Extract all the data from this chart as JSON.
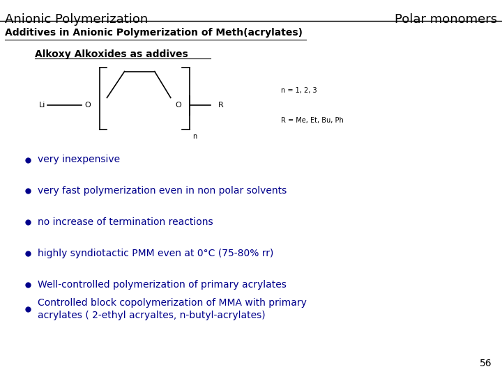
{
  "title_left": "Anionic Polymerization",
  "title_right": "Polar monomers",
  "subtitle": "Additives in Anionic Polymerization of Meth(acrylates)",
  "section_title": "Alkoxy Alkoxides as addives",
  "bullet_color": "#00008B",
  "bullet_points": [
    "very inexpensive",
    "very fast polymerization even in non polar solvents",
    "no increase of termination reactions",
    "highly syndiotactic PMM even at 0°C (75-80% rr)",
    "Well-controlled polymerization of primary acrylates",
    "Controlled block copolymerization of MMA with primary\nacrylates ( 2-ethyl acryaltes, n-butyl-acrylates)"
  ],
  "page_number": "56",
  "chem_note1": "n = 1, 2, 3",
  "chem_note2": "R = Me, Et, Bu, Ph",
  "bg_color": "#ffffff",
  "text_color": "#000000",
  "header_font_size": 13,
  "subtitle_font_size": 10,
  "section_font_size": 10,
  "bullet_font_size": 10,
  "small_font_size": 7
}
